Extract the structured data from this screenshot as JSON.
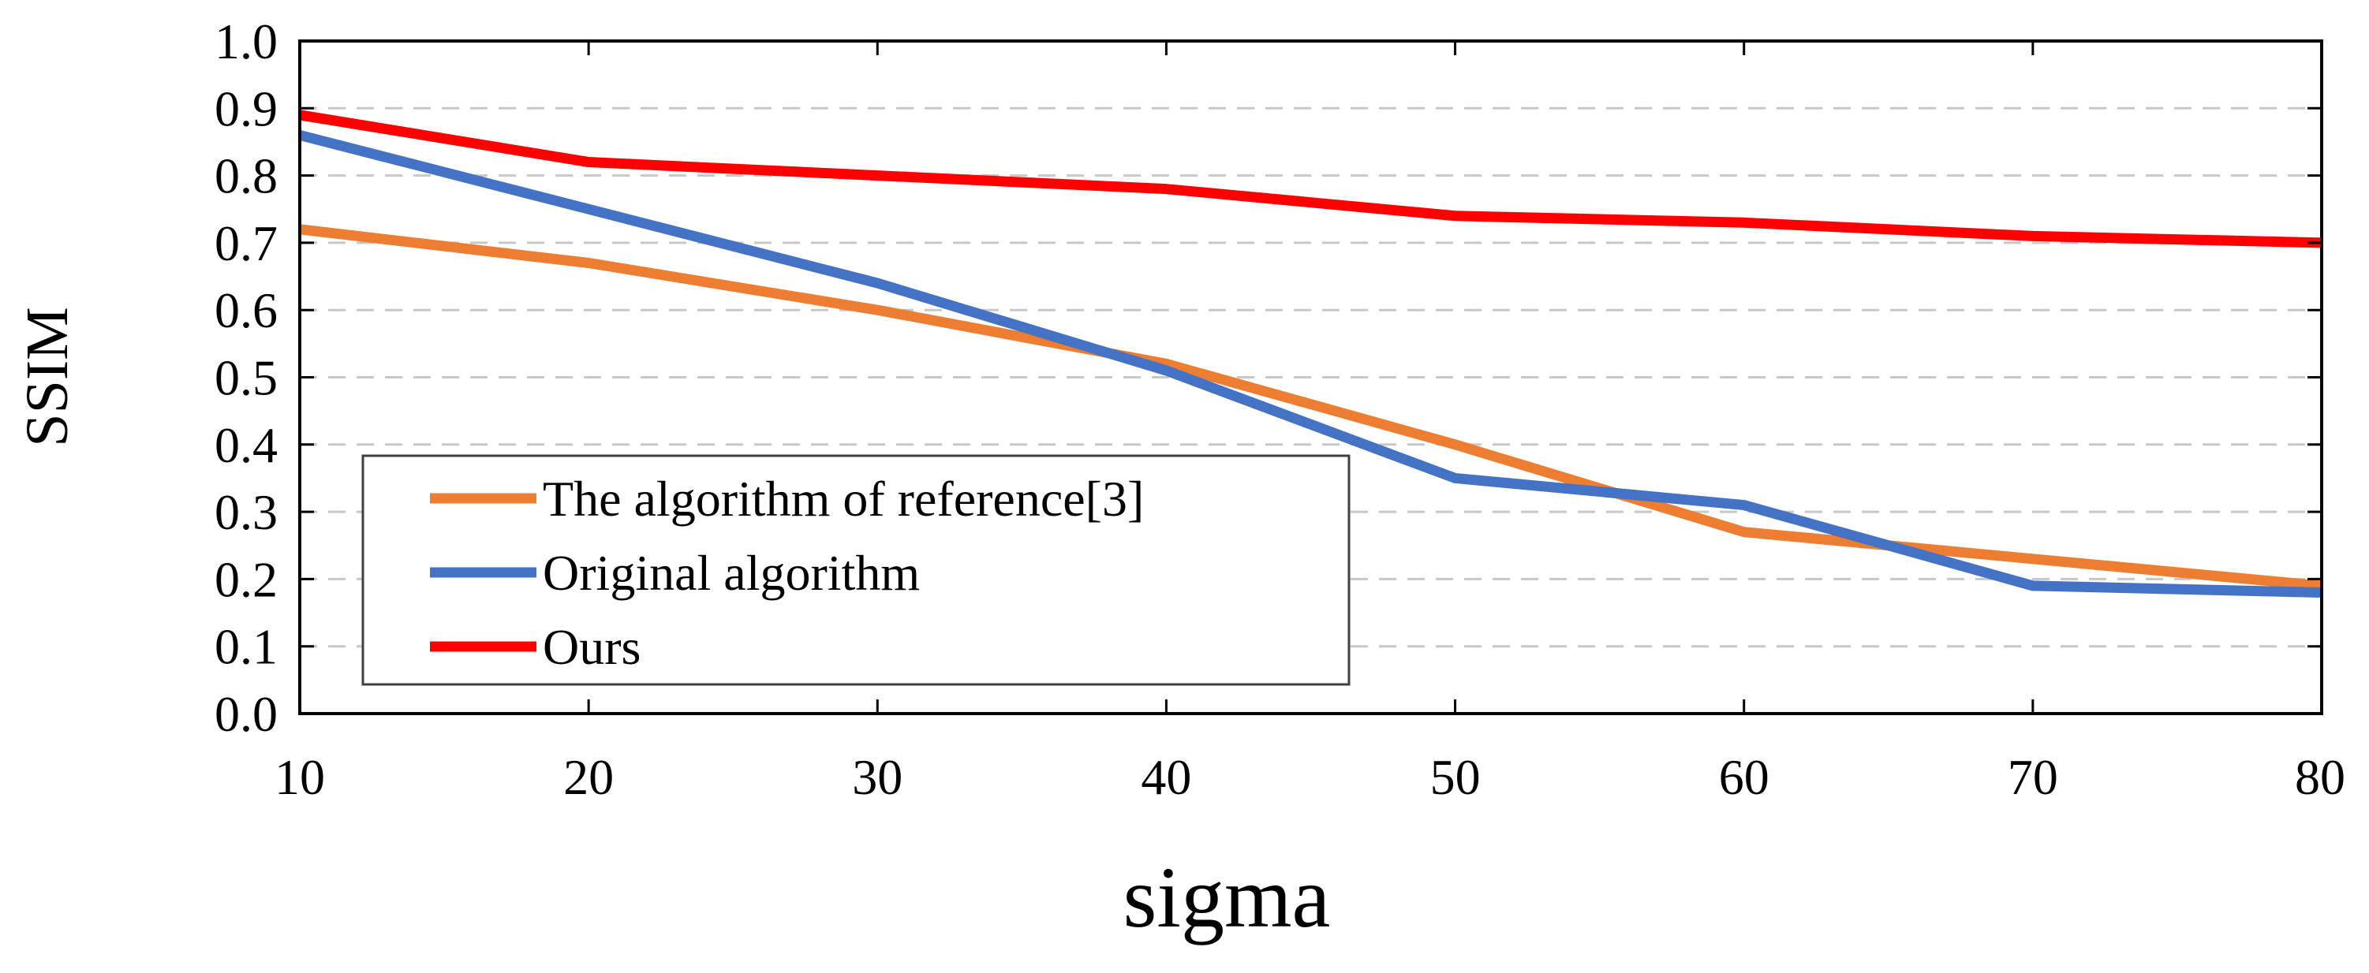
{
  "chart_data": {
    "type": "line",
    "title": "",
    "xlabel": "sigma",
    "ylabel": "SSIM",
    "xlim": [
      10,
      80
    ],
    "ylim": [
      0.0,
      1.0
    ],
    "x": [
      10,
      20,
      30,
      40,
      50,
      60,
      70,
      80
    ],
    "x_ticks": [
      10,
      20,
      30,
      40,
      50,
      60,
      70,
      80
    ],
    "y_ticks": [
      0.0,
      0.1,
      0.2,
      0.3,
      0.4,
      0.5,
      0.6,
      0.7,
      0.8,
      0.9,
      1.0
    ],
    "y_tick_labels": [
      "0.0",
      "0.1",
      "0.2",
      "0.3",
      "0.4",
      "0.5",
      "0.6",
      "0.7",
      "0.8",
      "0.9",
      "1.0"
    ],
    "grid": "horizontal dashed",
    "legend_position": "bottom-left",
    "series": [
      {
        "name": "The algorithm of reference[3]",
        "color": "#ED7D31",
        "values": [
          0.72,
          0.67,
          0.6,
          0.52,
          0.4,
          0.27,
          0.23,
          0.19
        ]
      },
      {
        "name": "Original algorithm",
        "color": "#4472C4",
        "values": [
          0.86,
          0.75,
          0.64,
          0.51,
          0.35,
          0.31,
          0.19,
          0.18
        ]
      },
      {
        "name": "Ours",
        "color": "#FF0000",
        "values": [
          0.89,
          0.82,
          0.8,
          0.78,
          0.74,
          0.73,
          0.71,
          0.7
        ]
      }
    ]
  }
}
